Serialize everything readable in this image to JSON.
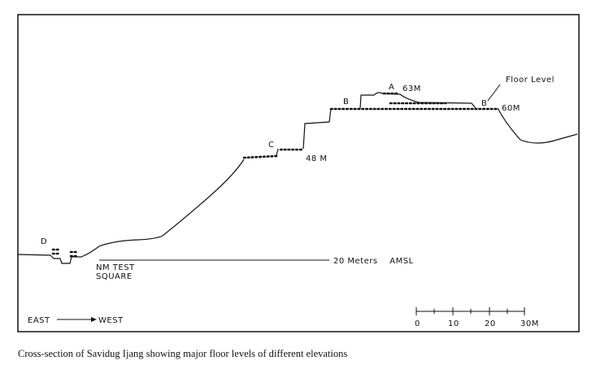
{
  "figure": {
    "labels": {
      "a": "A",
      "a_elev": "63M",
      "floor_level": "Floor Level",
      "b_left": "B",
      "b_right": "B",
      "b_elev": "60M",
      "c": "C",
      "c_elev": "48 M",
      "d": "D",
      "test_square": [
        "NM TEST",
        "SQUARE"
      ],
      "amsl": "20 Meters    AMSL",
      "east": "EAST",
      "west": "WEST"
    },
    "scale": [
      "0",
      "10",
      "20",
      "30M"
    ]
  },
  "caption": "Cross-section of Savidug Ijang showing major floor levels of different elevations"
}
